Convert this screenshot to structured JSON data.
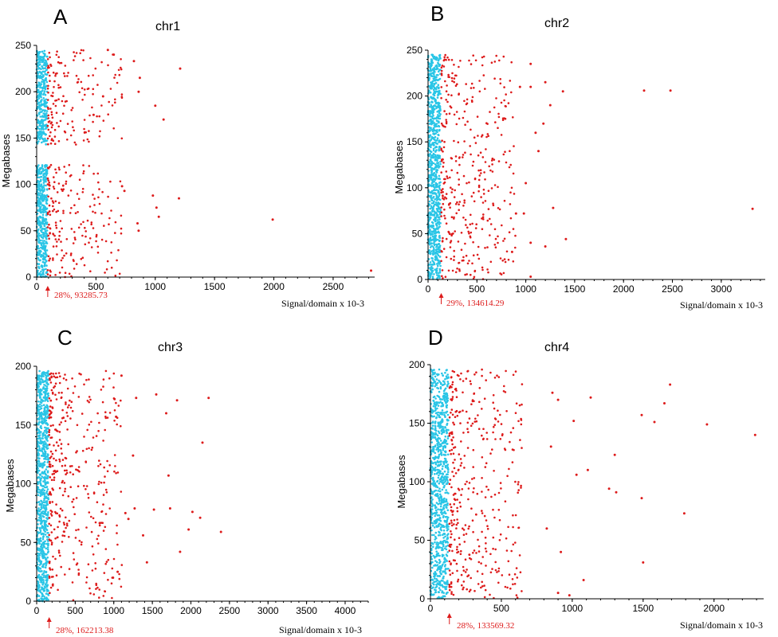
{
  "colors": {
    "below": "#29c5e6",
    "above": "#dd1b1b",
    "axis": "#000000",
    "marker": "#dd1b1b"
  },
  "chart_data": [
    {
      "type": "scatter",
      "panel": "A",
      "title": "chr1",
      "xlabel": "Signal/domain  x 10-3",
      "ylabel": "Megabases",
      "xlim": [
        0,
        2850
      ],
      "ylim": [
        0,
        250
      ],
      "xticks": [
        0,
        500,
        1000,
        1500,
        2000,
        2500
      ],
      "yticks": [
        0,
        50,
        100,
        150,
        200,
        250
      ],
      "threshold": {
        "x": 93.3,
        "label": "28%, 93285.73"
      },
      "gaps": [
        [
          121,
          143
        ]
      ],
      "series": [
        {
          "values": [
            [
              1210,
              225
            ],
            [
              1070,
              170
            ],
            [
              1000,
              185
            ],
            [
              870,
              215
            ],
            [
              860,
              200
            ],
            [
              820,
              233
            ],
            [
              1200,
              85
            ],
            [
              1010,
              75
            ],
            [
              1030,
              65
            ],
            [
              980,
              88
            ],
            [
              860,
              50
            ],
            [
              850,
              58
            ],
            [
              740,
              93
            ],
            [
              720,
              98
            ],
            [
              1990,
              62
            ],
            [
              2820,
              7
            ],
            [
              650,
              240
            ],
            [
              600,
              245
            ],
            [
              480,
              175
            ],
            [
              560,
              195
            ]
          ]
        }
      ]
    },
    {
      "type": "scatter",
      "panel": "B",
      "title": "chr2",
      "xlabel": "Signal/domain  x 10-3",
      "ylabel": "Megabases",
      "xlim": [
        0,
        3450
      ],
      "ylim": [
        0,
        250
      ],
      "xticks": [
        0,
        500,
        1000,
        1500,
        2000,
        2500,
        3000
      ],
      "yticks": [
        0,
        50,
        100,
        150,
        200,
        250
      ],
      "threshold": {
        "x": 134.6,
        "label": "29%, 134614.29"
      },
      "gaps": [],
      "series": [
        {
          "values": [
            [
              2210,
              206
            ],
            [
              2480,
              206
            ],
            [
              1380,
              205
            ],
            [
              1200,
              215
            ],
            [
              1050,
              235
            ],
            [
              940,
              210
            ],
            [
              3320,
              77
            ],
            [
              1280,
              78
            ],
            [
              1410,
              44
            ],
            [
              1200,
              36
            ],
            [
              1050,
              210
            ],
            [
              1250,
              190
            ],
            [
              1180,
              170
            ],
            [
              1100,
              160
            ],
            [
              1130,
              140
            ],
            [
              1000,
              105
            ],
            [
              900,
              72
            ],
            [
              980,
              72
            ],
            [
              1050,
              40
            ],
            [
              860,
              30
            ],
            [
              1050,
              3
            ]
          ]
        }
      ]
    },
    {
      "type": "scatter",
      "panel": "C",
      "title": "chr3",
      "xlabel": "Signal/domain  x 10-3",
      "ylabel": "Megabases",
      "xlim": [
        0,
        4300
      ],
      "ylim": [
        0,
        200
      ],
      "xticks": [
        0,
        500,
        1000,
        1500,
        2000,
        2500,
        3000,
        3500,
        4000
      ],
      "yticks": [
        0,
        50,
        100,
        150,
        200
      ],
      "threshold": {
        "x": 162.2,
        "label": "28%, 162213.38"
      },
      "gaps": [],
      "series": [
        {
          "values": [
            [
              1100,
              192
            ],
            [
              1550,
              176
            ],
            [
              1290,
              173
            ],
            [
              1820,
              171
            ],
            [
              2230,
              173
            ],
            [
              1680,
              160
            ],
            [
              2150,
              135
            ],
            [
              1010,
              172
            ],
            [
              1250,
              124
            ],
            [
              1710,
              107
            ],
            [
              1030,
              157
            ],
            [
              1270,
              79
            ],
            [
              1520,
              78
            ],
            [
              1730,
              79
            ],
            [
              2020,
              76
            ],
            [
              2120,
              71
            ],
            [
              2390,
              59
            ],
            [
              1970,
              61
            ],
            [
              1860,
              42
            ],
            [
              1380,
              56
            ],
            [
              1430,
              33
            ],
            [
              1050,
              25
            ],
            [
              990,
              20
            ],
            [
              1190,
              70
            ],
            [
              1150,
              75
            ]
          ]
        }
      ]
    },
    {
      "type": "scatter",
      "panel": "D",
      "title": "chr4",
      "xlabel": "Signal/domain  x 10-3",
      "ylabel": "Megabases",
      "xlim": [
        0,
        2350
      ],
      "ylim": [
        0,
        200
      ],
      "xticks": [
        0,
        500,
        1000,
        1500,
        2000
      ],
      "yticks": [
        0,
        50,
        100,
        150,
        200
      ],
      "threshold": {
        "x": 133.6,
        "label": "28%, 133569.32"
      },
      "gaps": [],
      "series": [
        {
          "values": [
            [
              1690,
              183
            ],
            [
              1650,
              167
            ],
            [
              1580,
              151
            ],
            [
              1490,
              157
            ],
            [
              1130,
              172
            ],
            [
              1950,
              149
            ],
            [
              2290,
              140
            ],
            [
              1010,
              152
            ],
            [
              1300,
              123
            ],
            [
              1260,
              94
            ],
            [
              1310,
              91
            ],
            [
              1490,
              86
            ],
            [
              1790,
              73
            ],
            [
              1500,
              31
            ],
            [
              1080,
              16
            ],
            [
              1110,
              110
            ],
            [
              1030,
              106
            ],
            [
              860,
              176
            ],
            [
              900,
              170
            ],
            [
              850,
              130
            ],
            [
              920,
              40
            ],
            [
              820,
              60
            ],
            [
              900,
              5
            ],
            [
              980,
              3
            ]
          ]
        }
      ]
    }
  ]
}
